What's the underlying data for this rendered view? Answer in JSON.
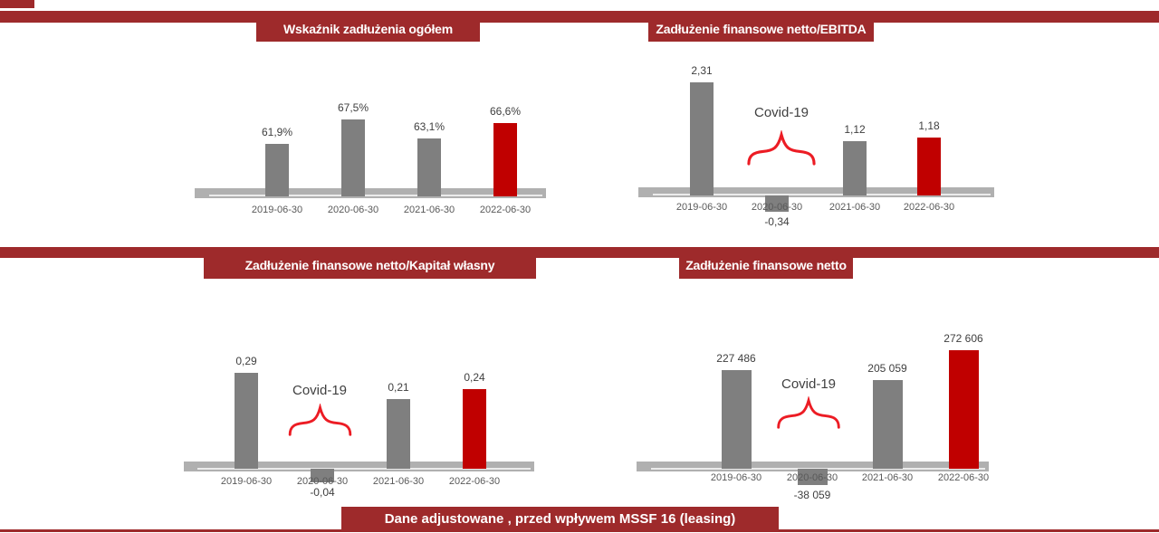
{
  "page": {
    "footer_banner": "Dane adjustowane , przed wpływem MSSF 16 (leasing)"
  },
  "colors": {
    "band_red": "#9e2a2b",
    "accent_bar_red": "#c00000",
    "bar_gray": "#7f7f7f",
    "baseline_gray": "#b0b0b0",
    "covid_brace_red": "#ec1c24",
    "covid_text_gray": "#404040",
    "value_label_gray": "#3f3f3f",
    "axis_label_gray": "#595959"
  },
  "chart_data": [
    {
      "type": "bar",
      "title": "Wskaźnik zadłużenia ogółem",
      "categories": [
        "2019-06-30",
        "2020-06-30",
        "2021-06-30",
        "2022-06-30"
      ],
      "values": [
        61.9,
        67.5,
        63.1,
        66.6
      ],
      "value_labels": [
        "61,9%",
        "67,5%",
        "63,1%",
        "66,6%"
      ],
      "highlight_index": 3,
      "baseline_value": 50,
      "ylim": [
        50,
        72
      ],
      "annotation": null,
      "xlabel": "",
      "ylabel": "",
      "grid": false,
      "legend": false
    },
    {
      "type": "bar",
      "title": "Zadłużenie finansowe netto/EBITDA",
      "categories": [
        "2019-06-30",
        "2020-06-30",
        "2021-06-30",
        "2022-06-30"
      ],
      "values": [
        2.31,
        -0.34,
        1.12,
        1.18
      ],
      "value_labels": [
        "2,31",
        "-0,34",
        "1,12",
        "1,18"
      ],
      "highlight_index": 3,
      "baseline_value": 0,
      "ylim": [
        -0.5,
        2.6
      ],
      "annotation": "Covid-19",
      "xlabel": "",
      "ylabel": "",
      "grid": false,
      "legend": false
    },
    {
      "type": "bar",
      "title": "Zadłużenie finansowe netto/Kapitał własny",
      "categories": [
        "2019-06-30",
        "2020-06-30",
        "2021-06-30",
        "2022-06-30"
      ],
      "values": [
        0.29,
        -0.04,
        0.21,
        0.24
      ],
      "value_labels": [
        "0,29",
        "-0,04",
        "0,21",
        "0,24"
      ],
      "highlight_index": 3,
      "baseline_value": 0,
      "ylim": [
        -0.05,
        0.31
      ],
      "annotation": "Covid-19",
      "xlabel": "",
      "ylabel": "",
      "grid": false,
      "legend": false
    },
    {
      "type": "bar",
      "title": "Zadłużenie finansowe netto",
      "categories": [
        "2019-06-30",
        "2020-06-30",
        "2021-06-30",
        "2022-06-30"
      ],
      "values": [
        227486,
        -38059,
        205059,
        272606
      ],
      "value_labels": [
        "227 486",
        "-38 059",
        "205 059",
        "272 606"
      ],
      "highlight_index": 3,
      "baseline_value": 0,
      "ylim": [
        -40000,
        285000
      ],
      "annotation": "Covid-19",
      "xlabel": "",
      "ylabel": "",
      "grid": false,
      "legend": false
    }
  ]
}
